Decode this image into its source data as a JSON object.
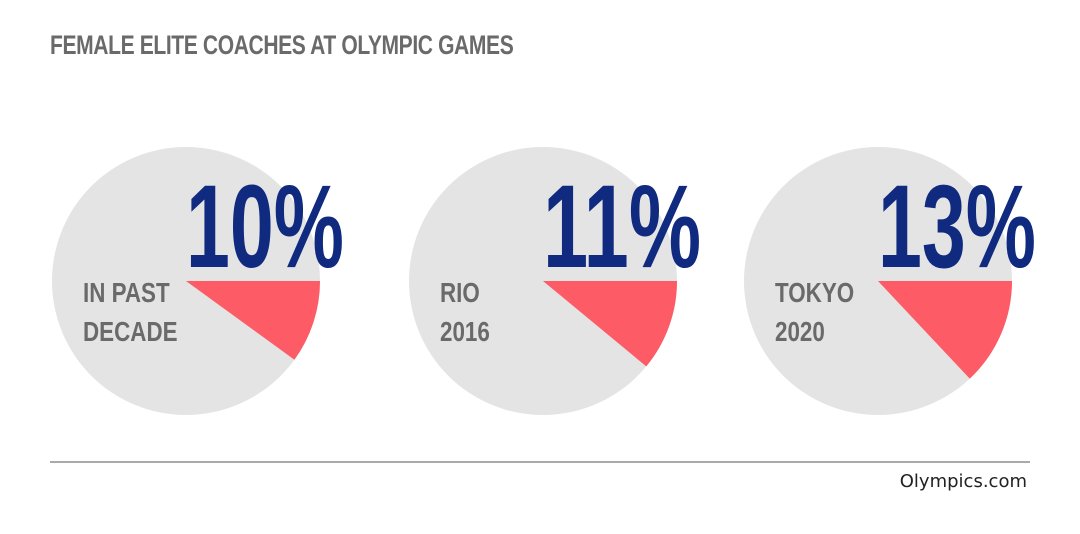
{
  "title": "FEMALE ELITE COACHES AT OLYMPIC GAMES",
  "source": "Olympics.com",
  "colors": {
    "pie_rest": "#e4e4e4",
    "pie_slice": "#fd5b66",
    "value_text": "#102a80",
    "label_text": "#6a6a6a",
    "rule": "#aaaaaa"
  },
  "chart_data": {
    "type": "pie",
    "title": "FEMALE ELITE COACHES AT OLYMPIC GAMES",
    "series": [
      {
        "label_lines": [
          "IN PAST",
          "DECADE"
        ],
        "value": 10,
        "value_label": "10%"
      },
      {
        "label_lines": [
          "RIO",
          "2016"
        ],
        "value": 11,
        "value_label": "11%"
      },
      {
        "label_lines": [
          "TOKYO",
          "2020"
        ],
        "value": 13,
        "value_label": "13%"
      }
    ]
  }
}
